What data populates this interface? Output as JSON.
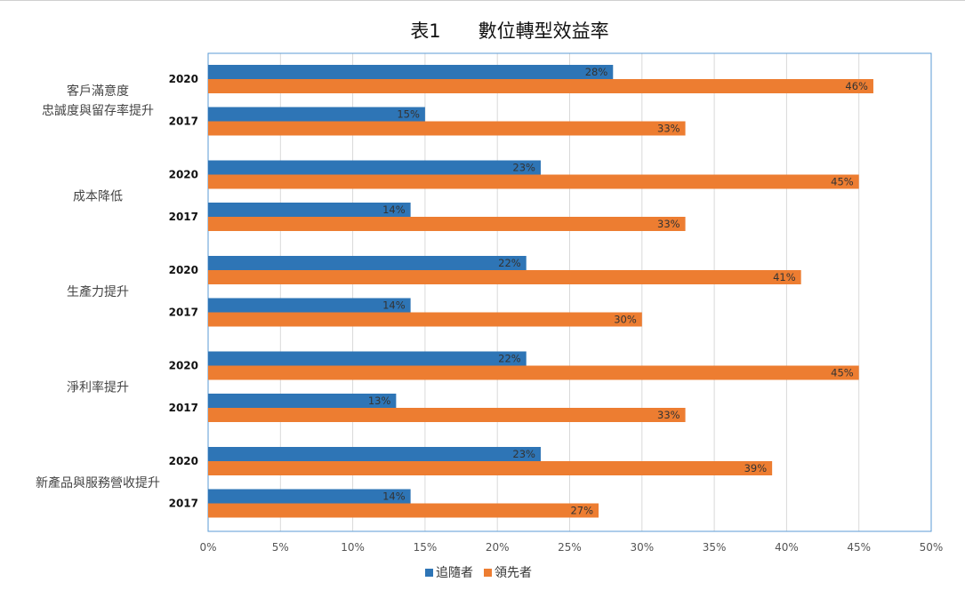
{
  "chart_data": {
    "type": "bar",
    "orientation": "horizontal",
    "title": "表1　　數位轉型效益率",
    "categories": [
      "客戶滿意度\n忠誠度與留存率提升",
      "成本降低",
      "生產力提升",
      "淨利率提升",
      "新產品與服務營收提升"
    ],
    "years": [
      "2020",
      "2017"
    ],
    "series": [
      {
        "name": "追隨者",
        "color": "#2e75b6",
        "values": {
          "2020": [
            28,
            23,
            22,
            22,
            23
          ],
          "2017": [
            15,
            14,
            14,
            13,
            14
          ]
        }
      },
      {
        "name": "領先者",
        "color": "#ed7d31",
        "values": {
          "2020": [
            46,
            45,
            41,
            45,
            39
          ],
          "2017": [
            33,
            33,
            30,
            33,
            27
          ]
        }
      }
    ],
    "value_suffix": "%",
    "xlim": [
      0,
      50
    ],
    "xticks": [
      0,
      5,
      10,
      15,
      20,
      25,
      30,
      35,
      40,
      45,
      50
    ],
    "grid": true,
    "legend": "bottom"
  }
}
